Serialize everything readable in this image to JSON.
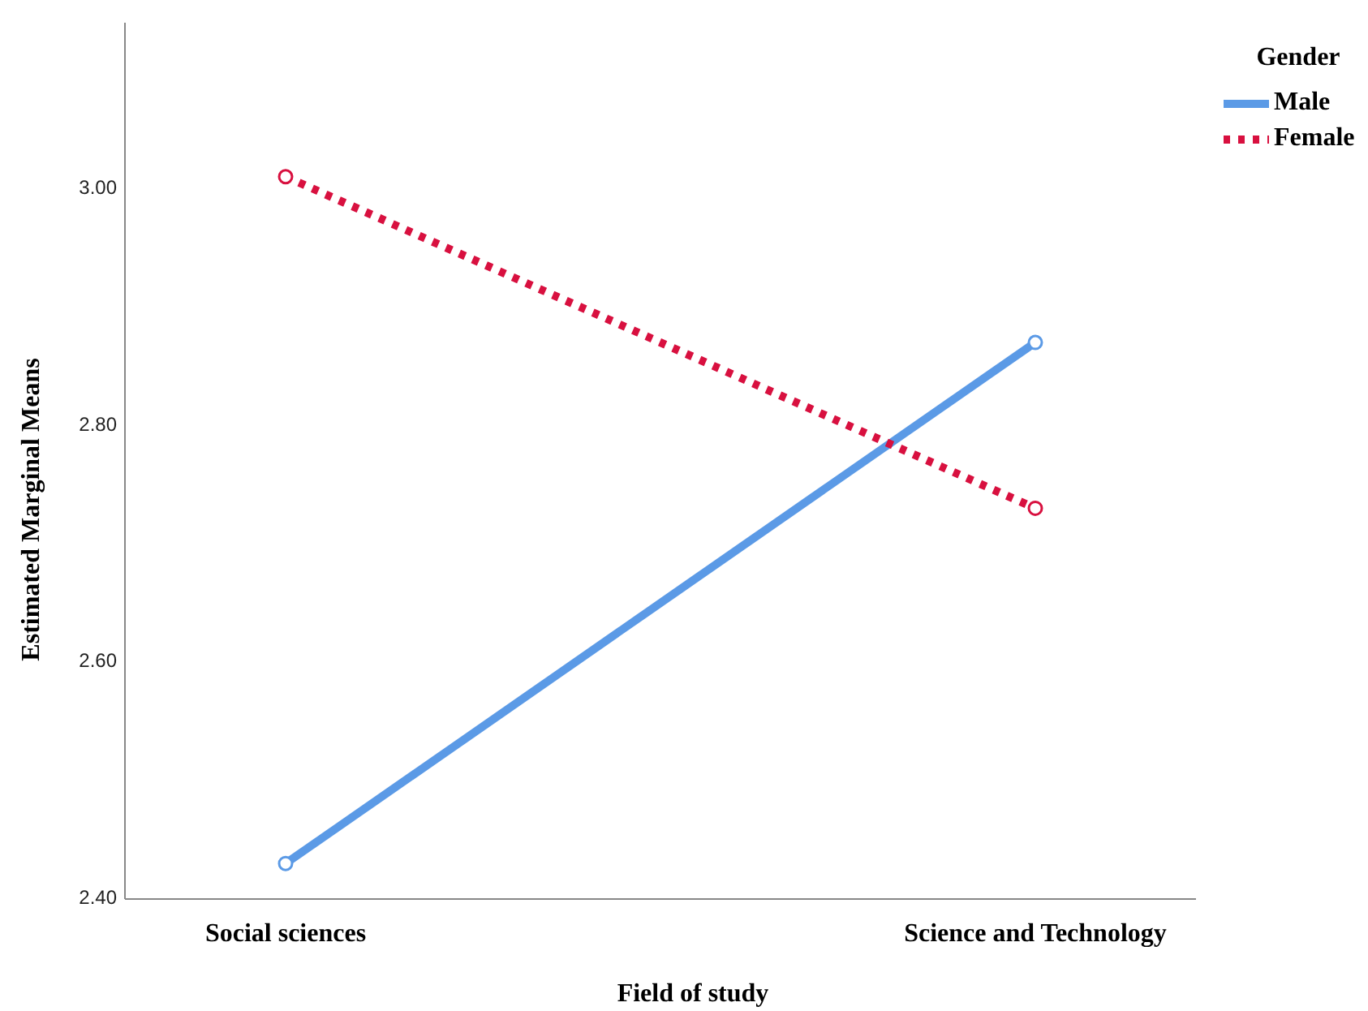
{
  "chart_data": {
    "type": "line",
    "xlabel": "Field of study",
    "ylabel": "Estimated Marginal Means",
    "legend_title": "Gender",
    "categories": [
      "Social sciences",
      "Science and Technology"
    ],
    "series": [
      {
        "name": "Male",
        "color": "#5b9ae6",
        "values": [
          2.43,
          2.87
        ],
        "line_style": "solid"
      },
      {
        "name": "Female",
        "color": "#d8103f",
        "values": [
          3.01,
          2.73
        ],
        "line_style": "dotted"
      }
    ],
    "ylim": [
      2.4,
      3.14
    ],
    "yticks": [
      {
        "value": 2.4,
        "label": "2.40"
      },
      {
        "value": 2.6,
        "label": "2.60"
      },
      {
        "value": 2.8,
        "label": "2.80"
      },
      {
        "value": 3.0,
        "label": "3.00"
      }
    ],
    "grid": false,
    "legend": "top right",
    "marker": "circle"
  }
}
